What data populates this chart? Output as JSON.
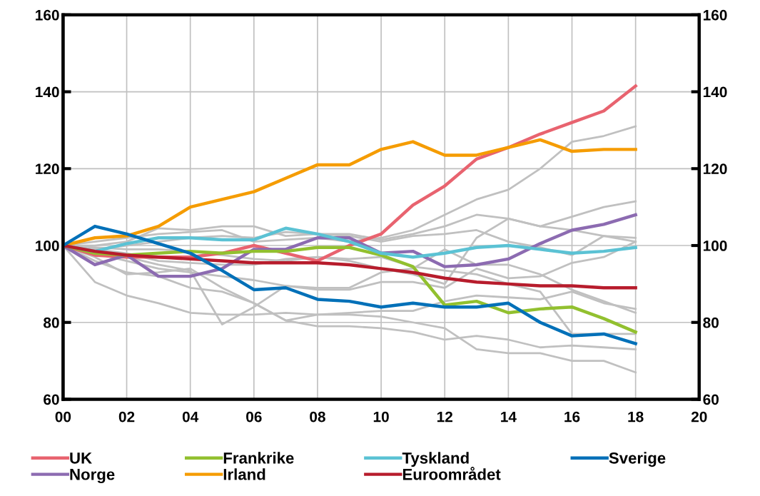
{
  "chart_data": {
    "type": "line",
    "x": [
      0,
      1,
      2,
      3,
      4,
      5,
      6,
      7,
      8,
      9,
      10,
      11,
      12,
      13,
      14,
      15,
      16,
      17,
      18
    ],
    "xlim": [
      0,
      20
    ],
    "xticks": [
      {
        "value": 0,
        "label": "00"
      },
      {
        "value": 2,
        "label": "02"
      },
      {
        "value": 4,
        "label": "04"
      },
      {
        "value": 6,
        "label": "06"
      },
      {
        "value": 8,
        "label": "08"
      },
      {
        "value": 10,
        "label": "10"
      },
      {
        "value": 12,
        "label": "12"
      },
      {
        "value": 14,
        "label": "14"
      },
      {
        "value": 16,
        "label": "16"
      },
      {
        "value": 18,
        "label": "18"
      },
      {
        "value": 20,
        "label": "20"
      }
    ],
    "ylim": [
      60,
      160
    ],
    "yticks": [
      60,
      80,
      100,
      120,
      140,
      160
    ],
    "y2lim": [
      60,
      160
    ],
    "y2ticks": [
      60,
      80,
      100,
      120,
      140,
      160
    ],
    "grid": true,
    "legend": "bottom",
    "line_style": "solid",
    "series": [
      {
        "color": "#c0c0c0",
        "values": [
          100,
          101,
          102,
          103,
          103.5,
          104,
          101,
          101.5,
          102,
          101,
          102,
          104,
          108,
          112,
          114.5,
          120,
          127,
          128.5,
          131
        ]
      },
      {
        "color": "#c0c0c0",
        "values": [
          100,
          99,
          100,
          101,
          102,
          102.5,
          102,
          103.5,
          103,
          103,
          101.5,
          103,
          105,
          108,
          107,
          105,
          107.5,
          110,
          111.5
        ]
      },
      {
        "color": "#c0c0c0",
        "values": [
          100,
          100,
          101,
          104.5,
          104,
          105,
          105,
          102.5,
          103,
          102.5,
          101,
          102.5,
          103,
          104,
          101,
          99.5,
          97.5,
          102.5,
          102
        ]
      },
      {
        "color": "#c0c0c0",
        "values": [
          100,
          99.5,
          99,
          99,
          98.5,
          97.5,
          96.5,
          96,
          97,
          96,
          94,
          92.5,
          90,
          102,
          107,
          105,
          104,
          102.5,
          101
        ]
      },
      {
        "color": "#c0c0c0",
        "values": [
          100,
          90.5,
          87,
          85,
          82.5,
          82,
          82,
          82.5,
          82,
          82,
          81.5,
          80,
          78.5,
          73,
          72,
          72,
          70,
          70,
          67
        ]
      },
      {
        "color": "#c0c0c0",
        "values": [
          100,
          96,
          93,
          92,
          89,
          88,
          85,
          80.5,
          79,
          79,
          78.5,
          77.5,
          75.5,
          76.5,
          75.5,
          73.5,
          74,
          73.5,
          73
        ]
      },
      {
        "color": "#c0c0c0",
        "values": [
          100,
          98,
          96,
          94,
          93,
          92,
          91,
          89.5,
          88.5,
          88.5,
          90.5,
          90.5,
          89,
          94,
          91.5,
          92,
          95.5,
          97,
          101
        ]
      },
      {
        "color": "#c0c0c0",
        "values": [
          100,
          97,
          92.5,
          93,
          94,
          89,
          85,
          80.5,
          82,
          82.5,
          83,
          83,
          85.5,
          87,
          86.5,
          86,
          88,
          85,
          83.5
        ]
      },
      {
        "color": "#c0c0c0",
        "values": [
          100,
          99,
          97,
          95,
          93.5,
          79.5,
          84,
          89.5,
          89,
          89,
          93,
          94,
          99,
          95,
          95,
          92.5,
          88.5,
          85.5,
          82.5
        ]
      },
      {
        "color": "#c0c0c0",
        "values": [
          100,
          99,
          98,
          96,
          95.5,
          95,
          95,
          96.5,
          97,
          96.5,
          97,
          94.5,
          93.5,
          92.5,
          90,
          88,
          77,
          77,
          77
        ]
      },
      {
        "name": "UK",
        "color": "#e8636f",
        "values": [
          100,
          97.5,
          97,
          97,
          97,
          98,
          100,
          98,
          96,
          100,
          103,
          110.5,
          115.5,
          122.5,
          125.5,
          129,
          132,
          135,
          141.5
        ]
      },
      {
        "name": "Norge",
        "color": "#8c6bb1",
        "values": [
          100,
          95,
          97.5,
          92,
          92,
          94,
          99,
          99,
          102,
          102,
          98,
          98.5,
          94.5,
          95,
          96.5,
          100.5,
          104,
          105.5,
          108
        ]
      },
      {
        "name": "Frankrike",
        "color": "#92c02f",
        "values": [
          100,
          98,
          97.5,
          98,
          98.5,
          98,
          98.5,
          98.5,
          99.5,
          99.5,
          97.5,
          94.5,
          84.5,
          85.5,
          82.5,
          83.5,
          84,
          81,
          77.5
        ]
      },
      {
        "name": "Irland",
        "color": "#f59c00",
        "values": [
          100,
          102,
          102.5,
          105,
          110,
          112,
          114,
          117.5,
          121,
          121,
          125,
          127,
          123.5,
          123.5,
          125.5,
          127.5,
          124.5,
          125,
          125
        ]
      },
      {
        "name": "Tyskland",
        "color": "#5bc2d4",
        "values": [
          100,
          98.5,
          100.5,
          102,
          102,
          101.5,
          101.5,
          104.5,
          103,
          101,
          98,
          97,
          98,
          99.5,
          100,
          99,
          98,
          98.5,
          99.5
        ]
      },
      {
        "name": "Euroområdet",
        "color": "#b71c2c",
        "values": [
          100,
          98.5,
          97.5,
          97,
          96.5,
          96,
          95.5,
          95.5,
          95.5,
          95,
          94,
          93,
          91.5,
          90.5,
          90,
          89.5,
          89.5,
          89,
          89
        ]
      },
      {
        "name": "Sverige",
        "color": "#0070b8",
        "values": [
          100,
          105,
          103,
          100.5,
          98,
          93.5,
          88.5,
          89,
          86,
          85.5,
          84,
          85,
          84,
          84,
          85,
          80,
          76.5,
          77,
          74.5
        ]
      }
    ]
  }
}
